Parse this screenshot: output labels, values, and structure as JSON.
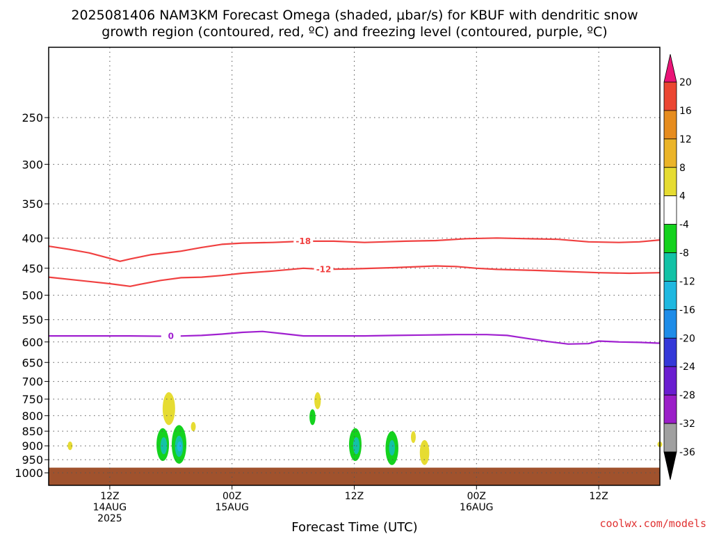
{
  "chart_data": {
    "type": "heatmap",
    "title_line1": "2025081406 NAM3KM Forecast Omega (shaded, μbar/s) for KBUF with dendritic snow",
    "title_line2": "growth region (contoured, red, ºC) and freezing level (contoured, purple, ºC)",
    "xlabel": "Forecast Time (UTC)",
    "credit": "coolwx.com/models",
    "y_scale": "log-pressure",
    "y_ticks": [
      250,
      300,
      350,
      400,
      450,
      500,
      550,
      600,
      650,
      700,
      750,
      800,
      850,
      900,
      950,
      1000
    ],
    "ylim": [
      1050,
      190
    ],
    "x_ticks": [
      {
        "hour": 6,
        "lines": [
          "12Z",
          "14AUG",
          "2025"
        ]
      },
      {
        "hour": 18,
        "lines": [
          "00Z",
          "15AUG"
        ]
      },
      {
        "hour": 30,
        "lines": [
          "12Z"
        ]
      },
      {
        "hour": 42,
        "lines": [
          "00Z",
          "16AUG"
        ]
      },
      {
        "hour": 54,
        "lines": [
          "12Z"
        ]
      }
    ],
    "xlim": [
      0,
      60
    ],
    "grid": true,
    "colorbar": {
      "levels": [
        -36,
        -32,
        -28,
        -24,
        -20,
        -16,
        -12,
        -8,
        -4,
        4,
        8,
        12,
        16,
        20
      ],
      "colors": [
        "#000000",
        "#a0a0a0",
        "#9b1fc8",
        "#6a1ed0",
        "#3438d8",
        "#1e8ce8",
        "#1fb8e0",
        "#13c2a6",
        "#14d21e",
        "#ffffff",
        "#e6dc32",
        "#ebb428",
        "#e68c1e",
        "#eb4632",
        "#eb1478"
      ]
    },
    "contours": [
      {
        "value": -18,
        "label": "-18",
        "color": "#f04040",
        "points": [
          [
            0,
            413
          ],
          [
            2,
            418
          ],
          [
            4,
            424
          ],
          [
            6,
            433
          ],
          [
            7,
            438
          ],
          [
            8,
            434
          ],
          [
            10,
            427
          ],
          [
            13,
            421
          ],
          [
            15,
            415
          ],
          [
            17,
            410
          ],
          [
            19,
            408
          ],
          [
            22,
            407
          ],
          [
            25,
            405
          ],
          [
            28,
            405
          ],
          [
            31,
            407
          ],
          [
            33,
            406
          ],
          [
            35,
            405
          ],
          [
            38,
            404
          ],
          [
            41,
            401
          ],
          [
            44,
            400
          ],
          [
            47,
            401
          ],
          [
            50,
            402
          ],
          [
            53,
            406
          ],
          [
            56,
            407
          ],
          [
            58,
            406
          ],
          [
            60,
            403
          ]
        ],
        "label_at": 26
      },
      {
        "value": -12,
        "label": "-12",
        "color": "#f04040",
        "points": [
          [
            0,
            466
          ],
          [
            3,
            472
          ],
          [
            6,
            478
          ],
          [
            8,
            483
          ],
          [
            9,
            479
          ],
          [
            11,
            472
          ],
          [
            13,
            467
          ],
          [
            15,
            466
          ],
          [
            17,
            463
          ],
          [
            19,
            459
          ],
          [
            22,
            455
          ],
          [
            25,
            450
          ],
          [
            27,
            452
          ],
          [
            30,
            451
          ],
          [
            34,
            449
          ],
          [
            38,
            446
          ],
          [
            40,
            447
          ],
          [
            42,
            450
          ],
          [
            44,
            452
          ],
          [
            48,
            454
          ],
          [
            51,
            456
          ],
          [
            54,
            458
          ],
          [
            57,
            459
          ],
          [
            60,
            458
          ]
        ],
        "label_at": 27
      },
      {
        "value": 0,
        "label": "0",
        "color": "#a020d0",
        "points": [
          [
            0,
            586
          ],
          [
            4,
            586
          ],
          [
            8,
            586
          ],
          [
            12,
            587
          ],
          [
            15,
            585
          ],
          [
            17,
            582
          ],
          [
            19,
            578
          ],
          [
            21,
            576
          ],
          [
            23,
            581
          ],
          [
            25,
            586
          ],
          [
            28,
            586
          ],
          [
            31,
            586
          ],
          [
            34,
            585
          ],
          [
            37,
            584
          ],
          [
            40,
            583
          ],
          [
            43,
            583
          ],
          [
            45,
            585
          ],
          [
            47,
            592
          ],
          [
            49,
            599
          ],
          [
            51,
            605
          ],
          [
            53,
            604
          ],
          [
            54,
            598
          ],
          [
            56,
            600
          ],
          [
            58,
            601
          ],
          [
            60,
            603
          ]
        ],
        "label_at": 12
      }
    ],
    "omega_shaded": [
      {
        "hour": 2.1,
        "p_top": 885,
        "p_bot": 915,
        "level": 4
      },
      {
        "hour": 11.8,
        "p_top": 730,
        "p_bot": 830,
        "level": 4
      },
      {
        "hour": 14.2,
        "p_top": 820,
        "p_bot": 850,
        "level": 4
      },
      {
        "hour": 11.2,
        "p_top": 840,
        "p_bot": 955,
        "level": -4
      },
      {
        "hour": 11.3,
        "p_top": 870,
        "p_bot": 930,
        "level": -8
      },
      {
        "hour": 12.8,
        "p_top": 830,
        "p_bot": 965,
        "level": -4
      },
      {
        "hour": 12.8,
        "p_top": 865,
        "p_bot": 940,
        "level": -8
      },
      {
        "hour": 12.85,
        "p_top": 885,
        "p_bot": 920,
        "level": -12
      },
      {
        "hour": 25.9,
        "p_top": 780,
        "p_bot": 830,
        "level": -4
      },
      {
        "hour": 26.4,
        "p_top": 730,
        "p_bot": 780,
        "level": 4
      },
      {
        "hour": 30.1,
        "p_top": 840,
        "p_bot": 955,
        "level": -4
      },
      {
        "hour": 30.2,
        "p_top": 870,
        "p_bot": 930,
        "level": -8
      },
      {
        "hour": 33.7,
        "p_top": 850,
        "p_bot": 970,
        "level": -4
      },
      {
        "hour": 33.7,
        "p_top": 880,
        "p_bot": 935,
        "level": -8
      },
      {
        "hour": 35.8,
        "p_top": 850,
        "p_bot": 890,
        "level": 4
      },
      {
        "hour": 36.9,
        "p_top": 880,
        "p_bot": 970,
        "level": 4
      },
      {
        "hour": 60.0,
        "p_top": 885,
        "p_bot": 905,
        "level": 4
      }
    ],
    "terrain": {
      "color": "#a0522d",
      "surface_pressure": 980
    }
  }
}
